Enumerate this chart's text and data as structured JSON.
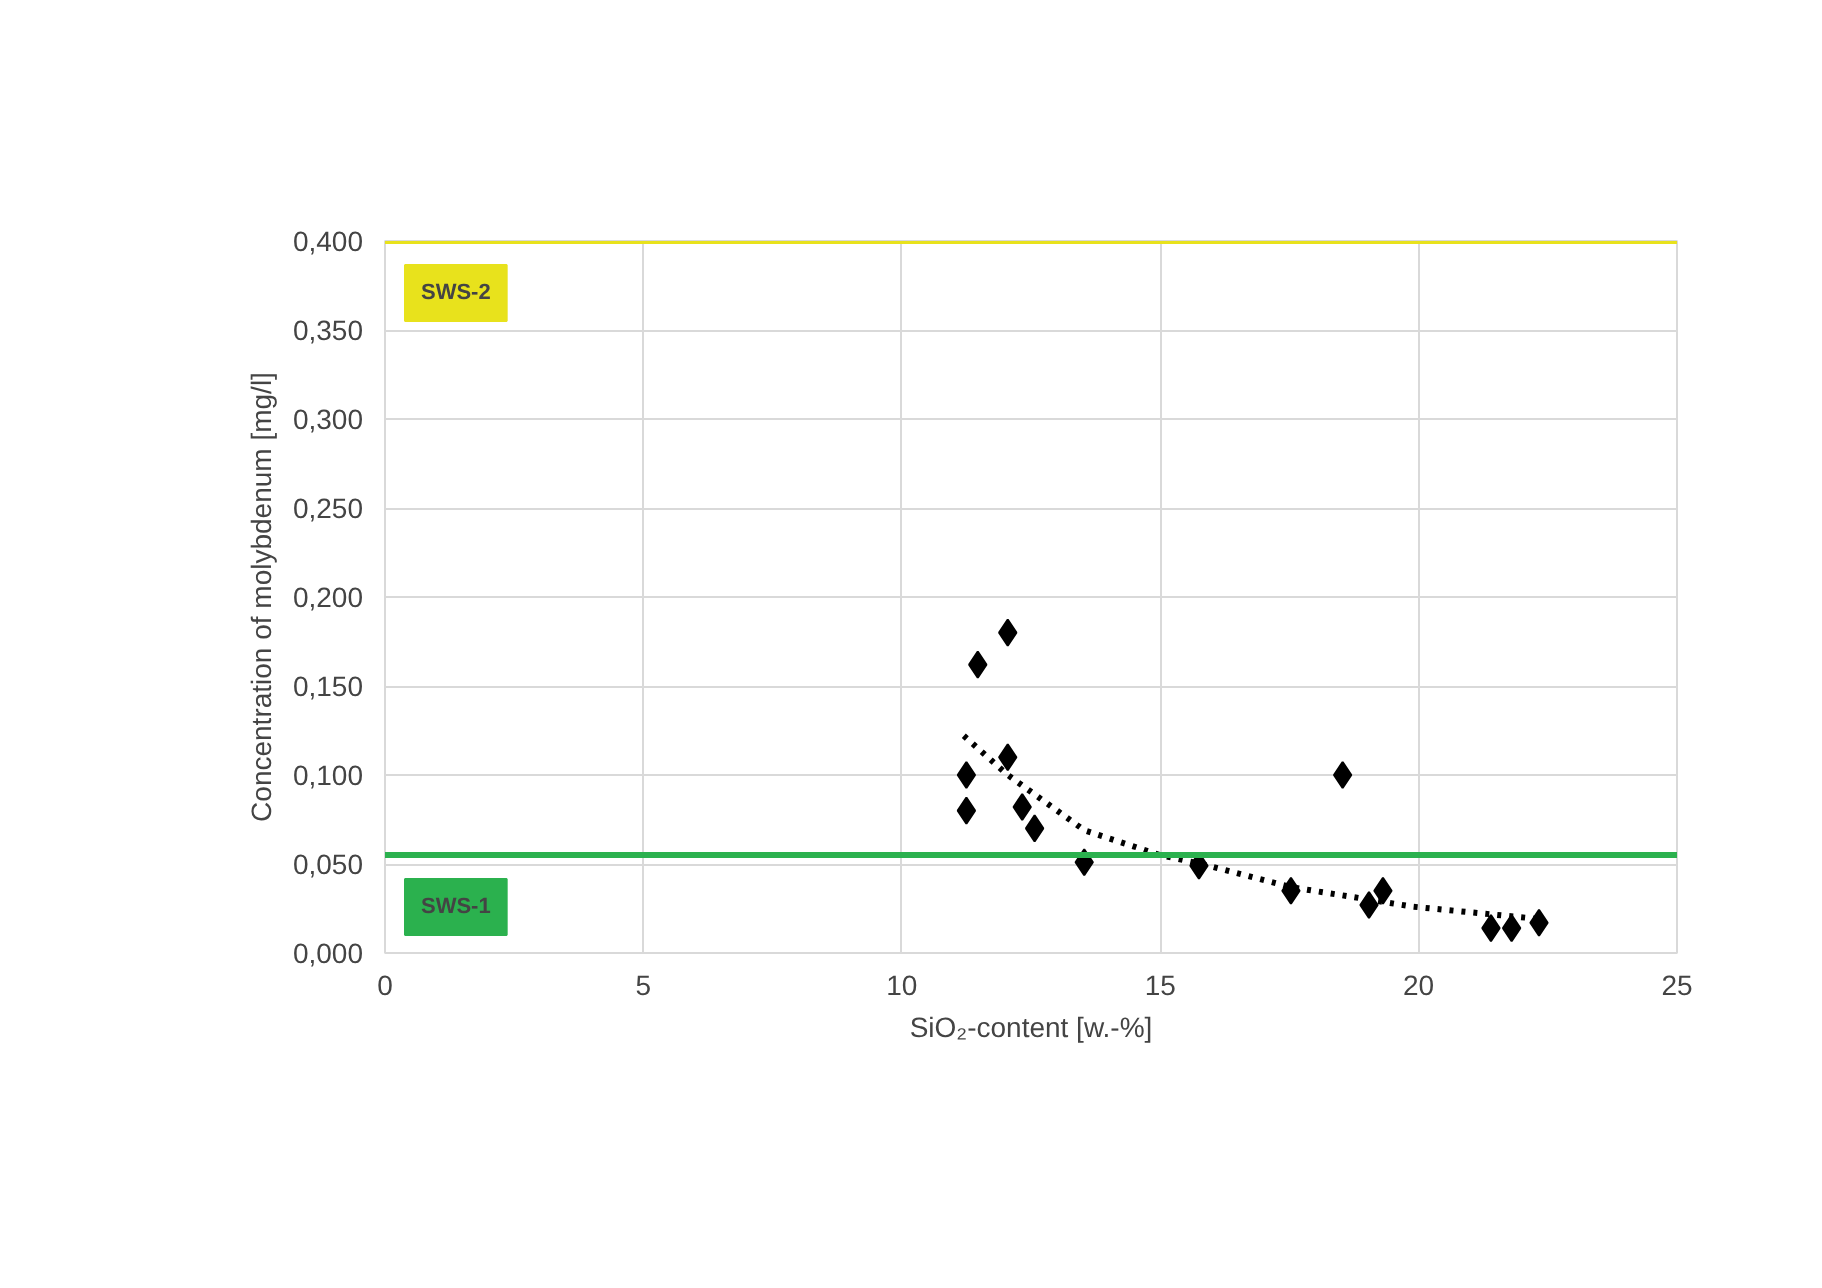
{
  "chart_data": {
    "type": "scatter",
    "xlabel": "SiO₂-content [w.-%]",
    "ylabel": "Concentration of molybdenum [mg/l]",
    "xlim": [
      0,
      25
    ],
    "xticks": [
      0,
      5,
      10,
      15,
      20,
      25
    ],
    "ylim": [
      0,
      0.4
    ],
    "yticks": [
      {
        "value": 0,
        "label": "0,000"
      },
      {
        "value": 0.05,
        "label": "0,050"
      },
      {
        "value": 0.1,
        "label": "0,100"
      },
      {
        "value": 0.15,
        "label": "0,150"
      },
      {
        "value": 0.2,
        "label": "0,200"
      },
      {
        "value": 0.25,
        "label": "0,250"
      },
      {
        "value": 0.3,
        "label": "0,300"
      },
      {
        "value": 0.35,
        "label": "0,350"
      },
      {
        "value": 0.4,
        "label": "0,400"
      }
    ],
    "grid": true,
    "marker": "diamond",
    "series": [
      {
        "color": "#000000",
        "x": [
          11.47,
          12.05,
          11.25,
          12.05,
          11.25,
          12.33,
          12.57,
          13.53,
          18.53,
          15.75,
          17.53,
          19.04,
          19.31,
          21.4,
          21.8,
          22.33
        ],
        "values": [
          0.162,
          0.18,
          0.1,
          0.11,
          0.08,
          0.082,
          0.07,
          0.051,
          0.1,
          0.049,
          0.035,
          0.027,
          0.035,
          0.014,
          0.014,
          0.017
        ]
      },
      {
        "type": "line",
        "color": "#000000",
        "line_style": "dotted",
        "marker": "none",
        "x": [
          11.2,
          12.05,
          13.53,
          15.0,
          15.8,
          17.53,
          19.9,
          22.37
        ],
        "values": [
          0.122,
          0.1,
          0.069,
          0.055,
          0.05,
          0.037,
          0.026,
          0.019
        ]
      }
    ],
    "ref_lines": [
      {
        "axis": "y",
        "value": 0.4,
        "label": "SWS-2",
        "color": "#e8e21c"
      },
      {
        "axis": "y",
        "value": 0.055,
        "label": "SWS-1",
        "color": "#2bb14e"
      }
    ]
  }
}
